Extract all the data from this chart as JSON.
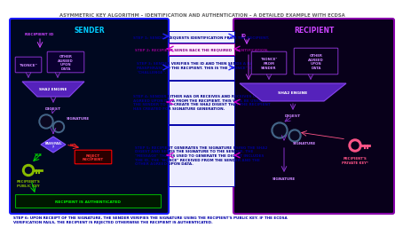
{
  "title": "ASYMMETRIC KEY ALGORITHM – IDENTIFICATION AND AUTHENTICATION – A DETAILED EXAMPLE WITH ECDSA",
  "title_color": "#606060",
  "bg_color": "#ffffff",
  "sender_border": "#1a1aff",
  "sender_fill": "#000820",
  "recipient_border": "#8800aa",
  "recipient_fill": "#08001a",
  "sender_label": "SENDER",
  "sender_label_color": "#00ccff",
  "recipient_label": "RECIPIENT",
  "recipient_label_color": "#cc44ff",
  "step1_text": "STEP 1: SENDER REQUESTS IDENTIFICATION FROM THE RECIPIENT.",
  "step2_text": "STEP 2: RECIPIENT SENDS BACK THE REQUIRED  IDENTIFICATION.",
  "step3_text": "STEP 3: SENDER VERIFIES THE ID AND THEN SENDS A RANDOM\nPASSPHRASE TO THE RECIPIENT. THIS IS THE \"NONCE\" OR\n\"CHALLENGE\".",
  "step4_text": "STEP 4: SENDER EITHER HAS OR RECEIVES AND RECEIVES OTHER\nAGREED UPON DATA FROM THE RECIPIENT. THIS WILL BE USED BY\nTHE SENDER TO RE-CREATE THE SHA2 DIGEST THAT THE RECIPIENT\nHAS CREATED FOR SIGNATURE GENERATION.",
  "step5_text": "STEP 5: RECIPIENT GENERATES THE SIGNATURE USING THE SHA2\nDIGEST AND SENDS THE SIGNATURE TO THE SENDER. THE\n\"MESSAGE\" THAT IS USED TO GENERATE THE DIGEST INCLUDES\nTHE ID, THE \"NONCE\" RECEIVED FROM THE SENDER AND THE\nOTHER AGREED UPON DATA.",
  "step_border": "#0000aa",
  "step_fill": "#eeeeff",
  "step_text_color": "#000088",
  "step2_border": "#aa00aa",
  "step2_fill": "#ffeeff",
  "step2_text_color": "#880088",
  "arrow_right_color": "#2222ff",
  "arrow_left_color": "#cc00cc",
  "purple_text": "#aa44cc",
  "nonce_border": "#8833cc",
  "nonce_fill": "#0a0030",
  "funnel_fill": "#5522bb",
  "funnel_edge": "#8844ee",
  "sha2_text": "#ffffff",
  "digest_color": "#cc88ff",
  "gear_outer": "#446688",
  "gear_inner": "#0a0820",
  "sig_color": "#cc88ff",
  "diamond_fill": "#5533dd",
  "diamond_edge": "#8855ff",
  "yes_color": "#00dd00",
  "no_color": "#ff2222",
  "key_green": "#88bb00",
  "key_pink": "#ff5588",
  "reject_border": "#ff0000",
  "reject_fill": "#2a0000",
  "reject_text": "#ff3333",
  "auth_border": "#00aa00",
  "auth_fill": "#001800",
  "auth_text": "#00ee00",
  "step6_text": "STEP 6: UPON RECEIPT OF THE SIGNATURE, THE SENDER VERIFIES THE SIGNATURE USING THE RECIPIENT'S PUBLIC KEY. IF THE ECDSA\nVERIFICATION FAILS, THE RECIPIENT IS REJECTED OTHERWISE THE RECIPIENT IS AUTHENTICATED.",
  "step6_color": "#0000aa",
  "recip_id_color": "#cc44ff",
  "id_right_color": "#cc44ff"
}
